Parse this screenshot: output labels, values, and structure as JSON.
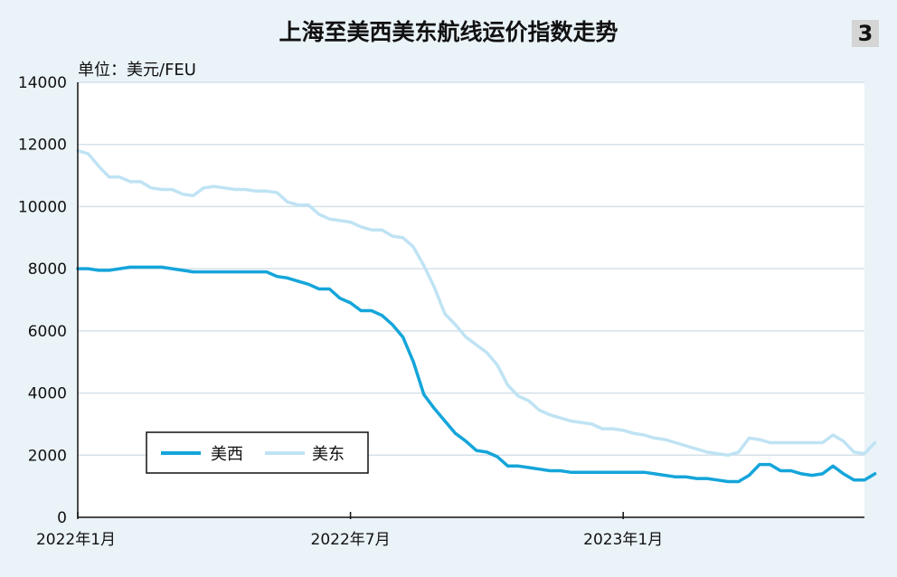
{
  "figure_number": "3",
  "unit_label": "单位：美元/FEU",
  "colors": {
    "background": "#eaf3f8",
    "plot_bg": "#ffffff",
    "grid": "#d6e1e9",
    "west": "#14a5da",
    "east": "#bfe3f4"
  },
  "chart_data": {
    "type": "line",
    "title": "上海至美西美东航线运价指数走势",
    "xlabel": "",
    "ylabel": "",
    "ylim": [
      0,
      14000
    ],
    "yticks": [
      0,
      2000,
      4000,
      6000,
      8000,
      10000,
      12000,
      14000
    ],
    "x_tick_labels": [
      "2022年1月",
      "2022年7月",
      "2023年1月"
    ],
    "x_tick_weeks": [
      0,
      26,
      52
    ],
    "x_range_weeks": [
      0,
      75
    ],
    "x_unit": "week index from 2022年1月",
    "grid": true,
    "legend_position": "bottom-left",
    "series": [
      {
        "name": "美西",
        "values": [
          8000,
          8000,
          7950,
          7950,
          8000,
          8050,
          8050,
          8050,
          8050,
          8000,
          7950,
          7900,
          7900,
          7900,
          7900,
          7900,
          7900,
          7900,
          7900,
          7750,
          7700,
          7600,
          7500,
          7350,
          7350,
          7050,
          6900,
          6650,
          6650,
          6500,
          6200,
          5800,
          5000,
          3950,
          3500,
          3100,
          2700,
          2450,
          2150,
          2100,
          1950,
          1650,
          1650,
          1600,
          1550,
          1500,
          1500,
          1450,
          1450,
          1450,
          1450,
          1450,
          1450,
          1450,
          1450,
          1400,
          1350,
          1300,
          1300,
          1250,
          1250,
          1200,
          1150,
          1150,
          1350,
          1700,
          1700,
          1500,
          1500,
          1400,
          1350,
          1400,
          1650,
          1400,
          1200,
          1200,
          1400
        ]
      },
      {
        "name": "美东",
        "values": [
          11800,
          11700,
          11300,
          10950,
          10950,
          10800,
          10800,
          10600,
          10550,
          10550,
          10400,
          10350,
          10600,
          10650,
          10600,
          10550,
          10550,
          10500,
          10500,
          10450,
          10150,
          10050,
          10050,
          9750,
          9600,
          9550,
          9500,
          9350,
          9250,
          9250,
          9050,
          9000,
          8700,
          8100,
          7400,
          6550,
          6200,
          5800,
          5550,
          5300,
          4900,
          4250,
          3900,
          3750,
          3450,
          3300,
          3200,
          3100,
          3050,
          3000,
          2850,
          2850,
          2800,
          2700,
          2650,
          2550,
          2500,
          2400,
          2300,
          2200,
          2100,
          2050,
          2000,
          2100,
          2550,
          2500,
          2400,
          2400,
          2400,
          2400,
          2400,
          2400,
          2650,
          2450,
          2100,
          2050,
          2400
        ]
      }
    ]
  }
}
